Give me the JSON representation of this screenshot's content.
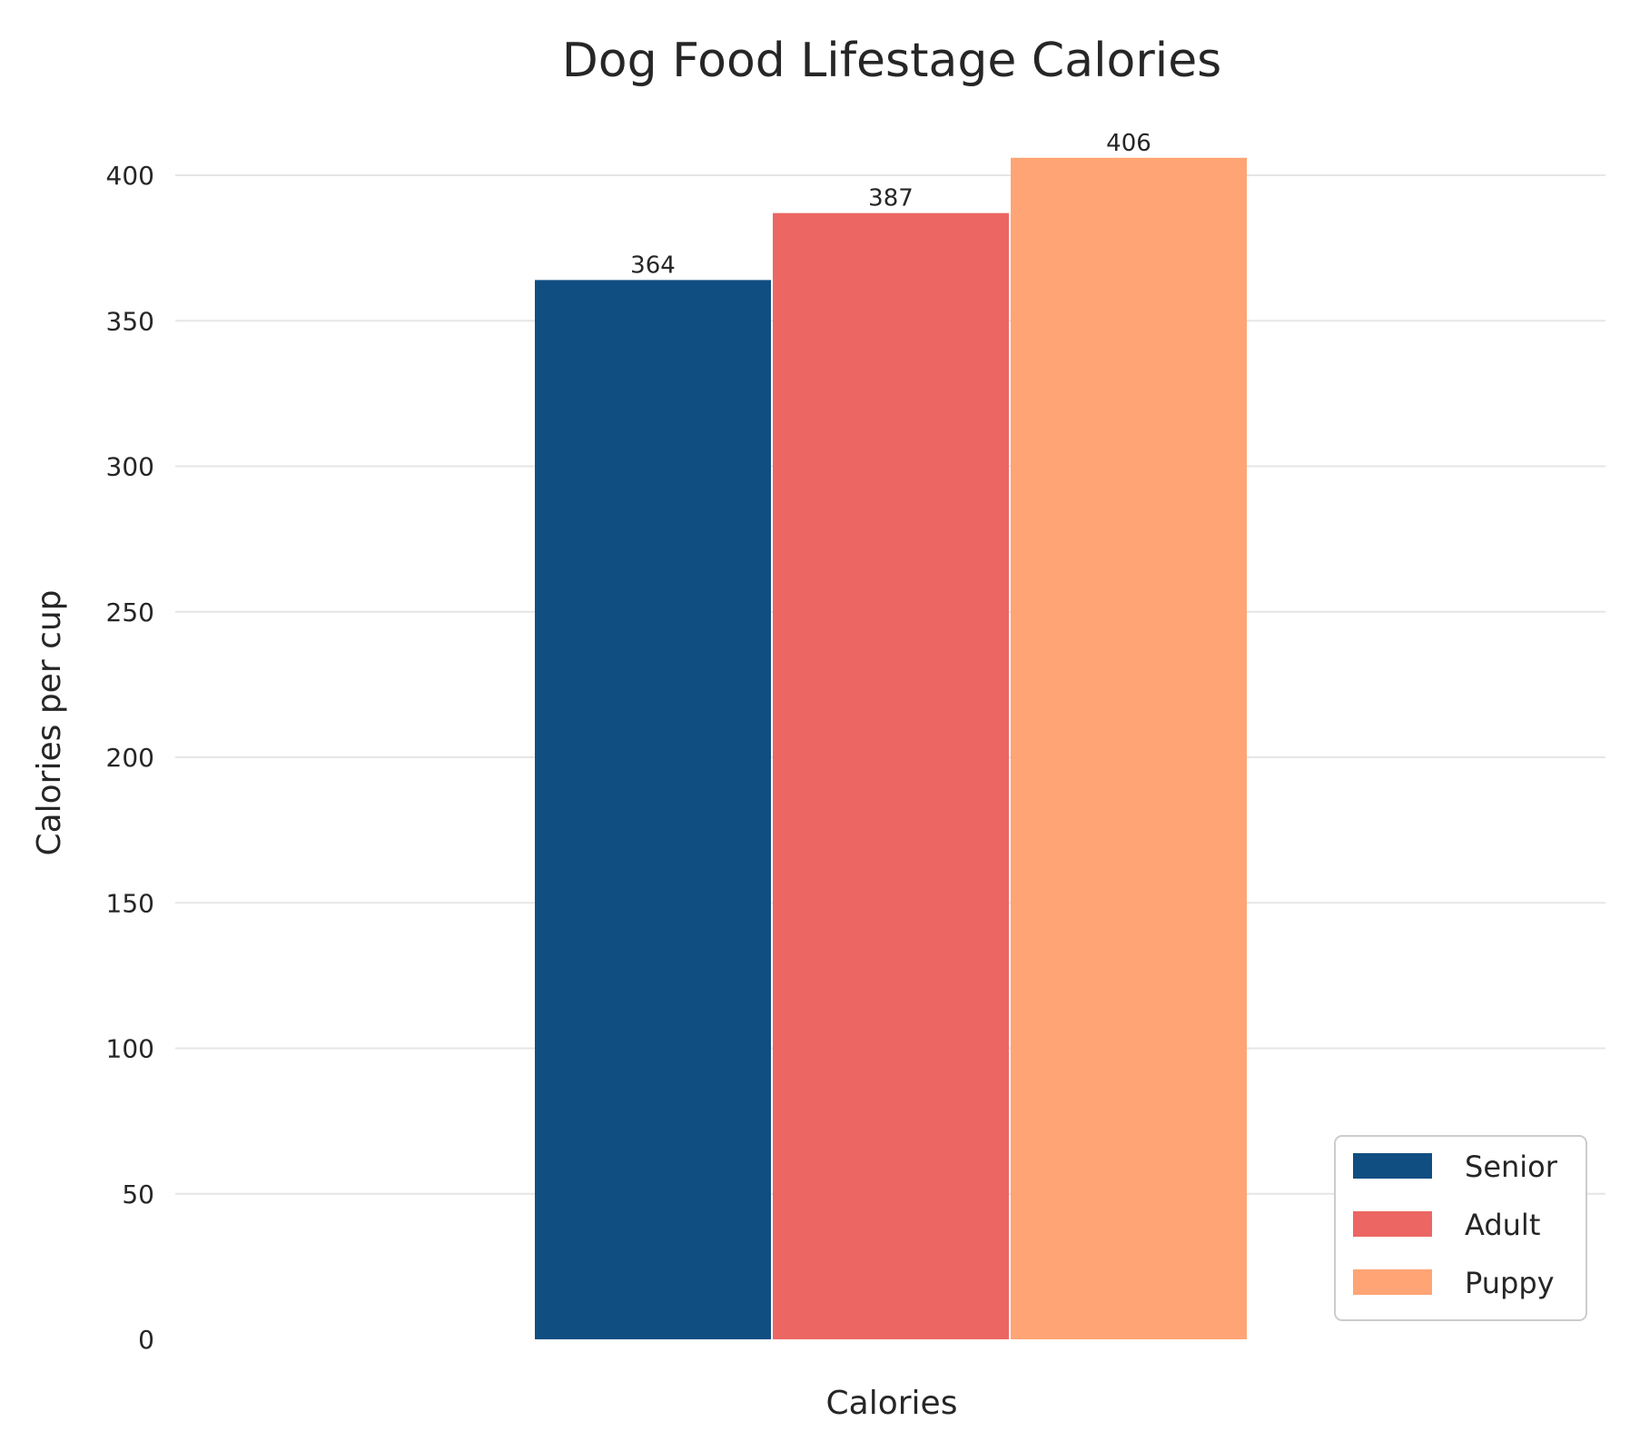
{
  "chart_data": {
    "type": "bar",
    "title": "Dog Food Lifestage Calories",
    "xlabel": "Calories",
    "ylabel": "Calories per cup",
    "categories": [
      "Calories"
    ],
    "series": [
      {
        "name": "Senior",
        "values": [
          364
        ],
        "color": "#104e82"
      },
      {
        "name": "Adult",
        "values": [
          387
        ],
        "color": "#ec6663"
      },
      {
        "name": "Puppy",
        "values": [
          406
        ],
        "color": "#ffa474"
      }
    ],
    "ylim": [
      0,
      415
    ],
    "yticks": [
      0,
      50,
      100,
      150,
      200,
      250,
      300,
      350,
      400
    ],
    "grid": true,
    "legend_position": "bottom-right"
  }
}
